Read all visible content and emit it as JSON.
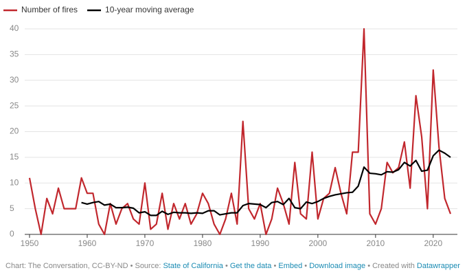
{
  "chart_data": {
    "type": "line",
    "x": [
      1950,
      1951,
      1952,
      1953,
      1954,
      1955,
      1956,
      1957,
      1958,
      1959,
      1960,
      1961,
      1962,
      1963,
      1964,
      1965,
      1966,
      1967,
      1968,
      1969,
      1970,
      1971,
      1972,
      1973,
      1974,
      1975,
      1976,
      1977,
      1978,
      1979,
      1980,
      1981,
      1982,
      1983,
      1984,
      1985,
      1986,
      1987,
      1988,
      1989,
      1990,
      1991,
      1992,
      1993,
      1994,
      1995,
      1996,
      1997,
      1998,
      1999,
      2000,
      2001,
      2002,
      2003,
      2004,
      2005,
      2006,
      2007,
      2008,
      2009,
      2010,
      2011,
      2012,
      2013,
      2014,
      2015,
      2016,
      2017,
      2018,
      2019,
      2020,
      2021,
      2022,
      2023
    ],
    "series": [
      {
        "name": "Number of fires",
        "color": "#c1272d",
        "values": [
          11,
          5,
          0,
          7,
          4,
          9,
          5,
          5,
          5,
          11,
          8,
          8,
          2,
          0,
          6,
          2,
          5,
          6,
          3,
          2,
          10,
          1,
          2,
          8,
          1,
          6,
          3,
          6,
          2,
          4,
          8,
          6,
          2,
          0,
          3,
          8,
          2,
          22,
          5,
          3,
          6,
          0,
          3,
          9,
          6,
          2,
          14,
          4,
          3,
          16,
          3,
          7,
          8,
          13,
          8,
          4,
          16,
          16,
          40,
          4,
          2,
          5,
          14,
          12,
          13,
          18,
          9,
          27,
          19,
          5,
          32,
          17,
          7,
          4
        ]
      },
      {
        "name": "10-year moving average",
        "color": "#000000",
        "values": [
          null,
          null,
          null,
          null,
          null,
          null,
          null,
          null,
          null,
          6.2,
          5.9,
          6.2,
          6.4,
          5.7,
          5.9,
          5.2,
          5.2,
          5.3,
          5.1,
          4.2,
          4.4,
          3.7,
          3.7,
          4.5,
          3.9,
          4.3,
          4.2,
          4.2,
          4.1,
          4.2,
          4.1,
          4.6,
          4.6,
          3.8,
          4.0,
          4.2,
          4.2,
          5.6,
          6.0,
          5.9,
          5.8,
          5.2,
          6.2,
          6.4,
          5.8,
          7.0,
          5.2,
          5.0,
          6.3,
          6.0,
          6.4,
          7.0,
          7.4,
          7.7,
          7.9,
          8.1,
          8.2,
          9.4,
          13.1,
          11.9,
          11.8,
          11.6,
          12.2,
          12.1,
          12.6,
          14.0,
          13.3,
          14.4,
          12.3,
          12.5,
          15.3,
          16.4,
          15.8,
          15.0
        ]
      }
    ],
    "xlim": [
      1950,
      2023
    ],
    "xticks": [
      1950,
      1960,
      1970,
      1980,
      1990,
      2000,
      2010,
      2020
    ],
    "ylim": [
      0,
      40
    ],
    "yticks": [
      0,
      5,
      10,
      15,
      20,
      25,
      30,
      35,
      40
    ],
    "grid": true,
    "footer": [
      {
        "text": "Chart: The Conversation, CC-BY-ND • Source: "
      },
      {
        "text": "State of California",
        "link": true
      },
      {
        "text": " • "
      },
      {
        "text": "Get the data",
        "link": true
      },
      {
        "text": " • "
      },
      {
        "text": "Embed",
        "link": true
      },
      {
        "text": " • "
      },
      {
        "text": "Download image",
        "link": true
      },
      {
        "text": " • Created with "
      },
      {
        "text": "Datawrapper",
        "link": true
      }
    ]
  }
}
